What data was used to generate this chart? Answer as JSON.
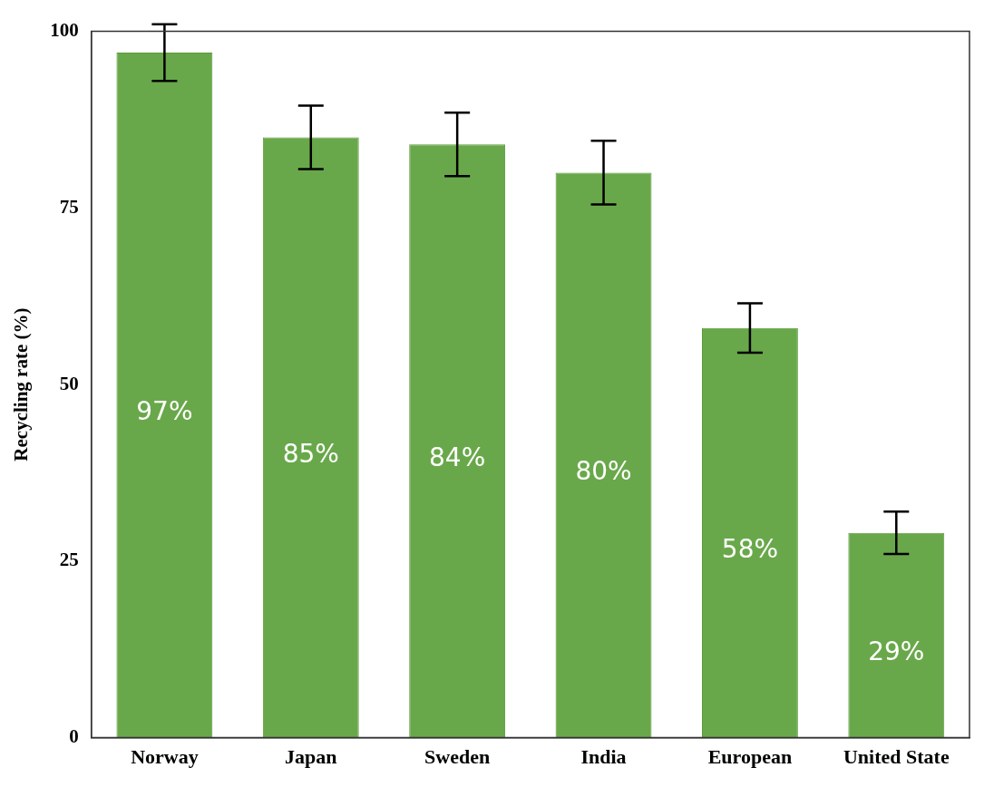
{
  "chart_data": {
    "type": "bar",
    "ylabel": "Recycling rate (%)",
    "categories": [
      "Norway",
      "Japan",
      "Sweden",
      "India",
      "European",
      "United State"
    ],
    "values": [
      97,
      85,
      84,
      80,
      58,
      29
    ],
    "errors": [
      4,
      4.5,
      4.5,
      4.5,
      3.5,
      3
    ],
    "color": "#69a84a",
    "ylim": [
      0,
      100
    ],
    "yticks": [
      0,
      25,
      50,
      75,
      100
    ],
    "value_labels": [
      "97%",
      "85%",
      "84%",
      "80%",
      "58%",
      "29%"
    ],
    "grid": false,
    "legend": false
  }
}
